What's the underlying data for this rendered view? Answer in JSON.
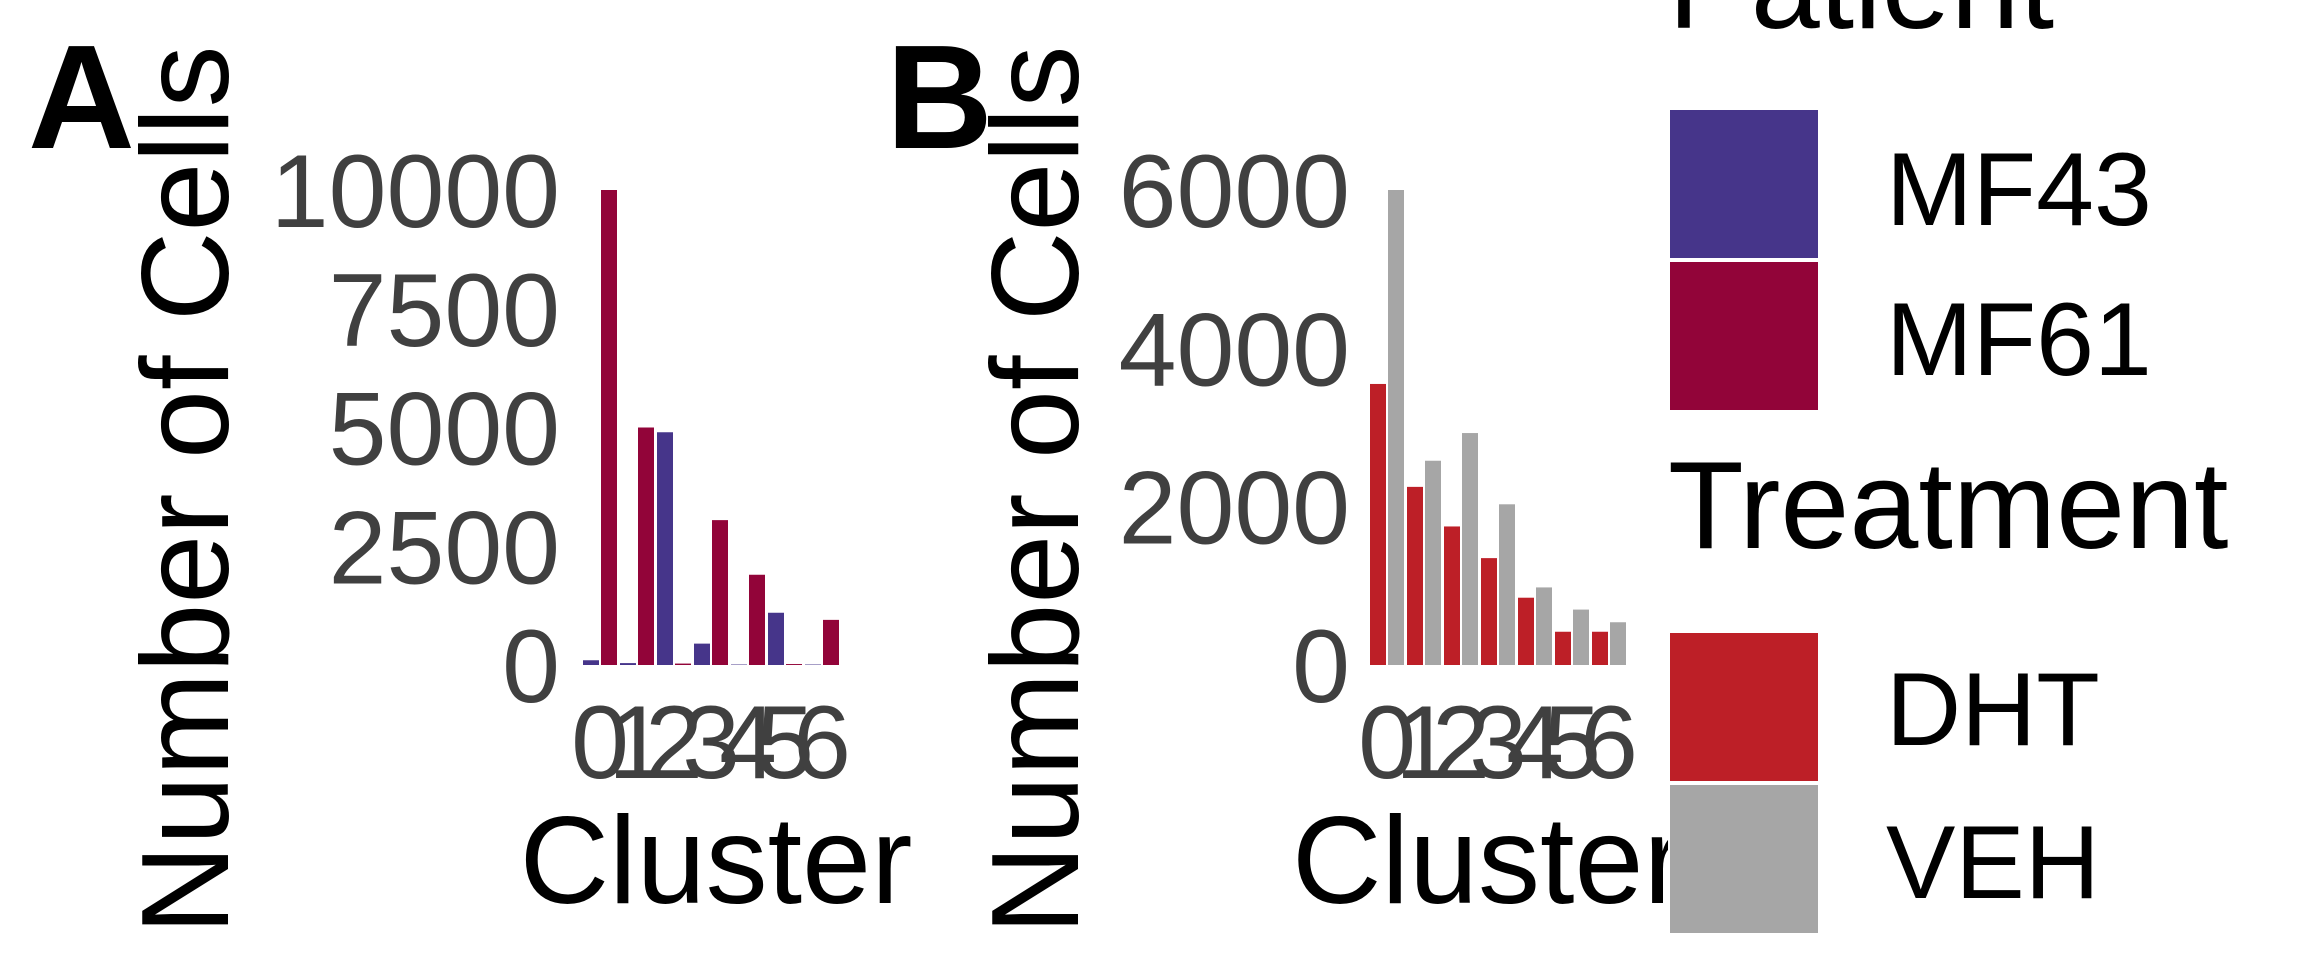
{
  "panels": {
    "a_label": "A",
    "b_label": "B"
  },
  "legend": {
    "patient_title": "Patient",
    "patient_items": [
      {
        "label": "MF43",
        "color": "#46358A"
      },
      {
        "label": "MF61",
        "color": "#920439"
      }
    ],
    "treatment_title": "Treatment",
    "treatment_items": [
      {
        "label": "DHT",
        "color": "#BD1F27"
      },
      {
        "label": "VEH",
        "color": "#A6A6A6"
      }
    ]
  },
  "chart_data": [
    {
      "type": "bar",
      "panel": "A",
      "xlabel": "Cluster",
      "ylabel": "Number of Cells",
      "categories": [
        "0",
        "1",
        "2",
        "3",
        "4",
        "5",
        "6"
      ],
      "yticks": [
        0,
        2500,
        5000,
        7500,
        10000
      ],
      "ylim": [
        0,
        10000
      ],
      "series": [
        {
          "name": "MF43",
          "color": "#46358A",
          "values": [
            100,
            40,
            4900,
            450,
            10,
            1100,
            10
          ]
        },
        {
          "name": "MF61",
          "color": "#920439",
          "values": [
            10000,
            5000,
            30,
            3050,
            1900,
            20,
            950
          ]
        }
      ]
    },
    {
      "type": "bar",
      "panel": "B",
      "xlabel": "Cluster",
      "ylabel": "Number of Cells",
      "categories": [
        "0",
        "1",
        "2",
        "3",
        "4",
        "5",
        "6"
      ],
      "yticks": [
        0,
        2000,
        4000,
        6000
      ],
      "ylim": [
        0,
        6000
      ],
      "series": [
        {
          "name": "DHT",
          "color": "#BD1F27",
          "values": [
            3550,
            2250,
            1750,
            1350,
            850,
            420,
            420
          ]
        },
        {
          "name": "VEH",
          "color": "#A6A6A6",
          "values": [
            6000,
            2580,
            2930,
            2030,
            980,
            700,
            540
          ]
        }
      ]
    }
  ]
}
